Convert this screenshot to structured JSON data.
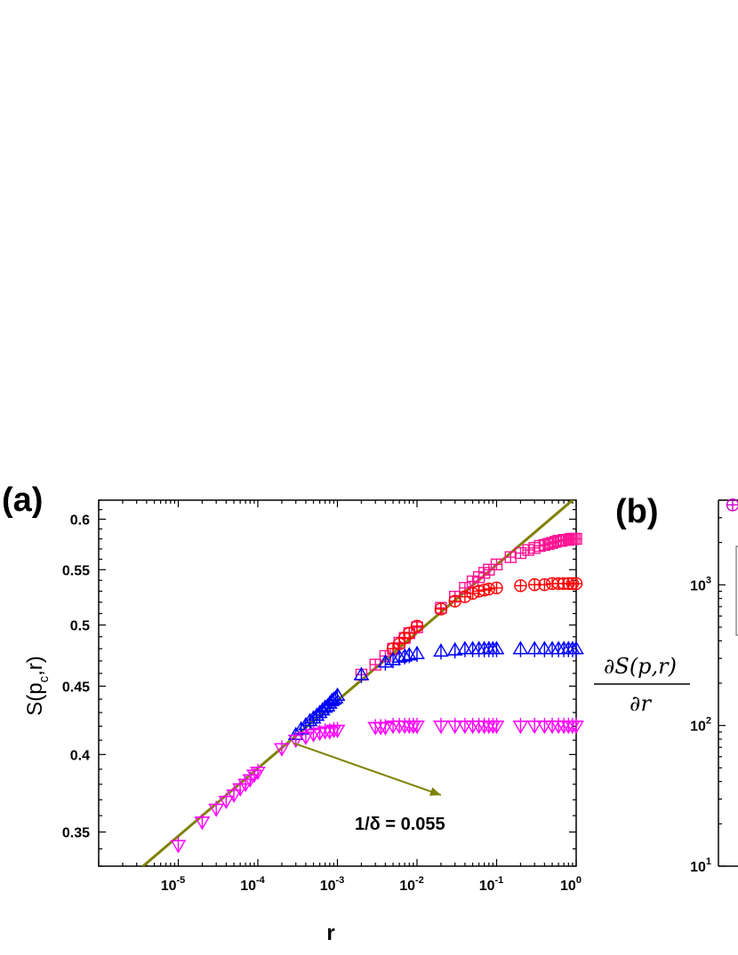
{
  "chart_data": [
    {
      "type": "scatter",
      "panel_label": "(a)",
      "xscale": "log",
      "yscale": "log",
      "xlim": [
        1e-06,
        1
      ],
      "ylim": [
        0.33,
        0.62
      ],
      "xlabel": "r",
      "ylabel": "S(p",
      "ylabel_sub": "c",
      "ylabel_rest": ",r)",
      "xticks": [
        {
          "base": "10",
          "exp": "-5"
        },
        {
          "base": "10",
          "exp": "-4"
        },
        {
          "base": "10",
          "exp": "-3"
        },
        {
          "base": "10",
          "exp": "-2"
        },
        {
          "base": "10",
          "exp": "-1"
        },
        {
          "base": "10",
          "exp": "0"
        }
      ],
      "xtick_values": [
        1e-05,
        0.0001,
        0.001,
        0.01,
        0.1,
        1
      ],
      "yticks": [
        "0.35",
        "0.4",
        "0.45",
        "0.5",
        "0.55",
        "0.6"
      ],
      "ytick_values": [
        0.35,
        0.4,
        0.45,
        0.5,
        0.55,
        0.6
      ],
      "fit_line": {
        "slope": 0.055,
        "x": [
          3.5e-06,
          1
        ],
        "y": [
          0.3295,
          0.6233
        ],
        "color": "#808000"
      },
      "annotation": {
        "text": "1/δ = 0.055",
        "arrow_from": [
          0.00028,
          0.408
        ],
        "arrow_to": [
          0.02,
          0.373
        ]
      },
      "series": [
        {
          "marker": "square-plus",
          "color": "#ff1493",
          "points": [
            [
              0.002,
              0.459
            ],
            [
              0.003,
              0.467
            ],
            [
              0.004,
              0.474
            ],
            [
              0.005,
              0.48
            ],
            [
              0.006,
              0.485
            ],
            [
              0.007,
              0.489
            ],
            [
              0.008,
              0.493
            ],
            [
              0.01,
              0.498
            ],
            [
              0.02,
              0.515
            ],
            [
              0.03,
              0.525
            ],
            [
              0.04,
              0.533
            ],
            [
              0.05,
              0.539
            ],
            [
              0.06,
              0.543
            ],
            [
              0.07,
              0.547
            ],
            [
              0.08,
              0.55
            ],
            [
              0.1,
              0.555
            ],
            [
              0.15,
              0.562
            ],
            [
              0.2,
              0.566
            ],
            [
              0.25,
              0.569
            ],
            [
              0.3,
              0.571
            ],
            [
              0.35,
              0.573
            ],
            [
              0.4,
              0.574
            ],
            [
              0.45,
              0.575
            ],
            [
              0.5,
              0.576
            ],
            [
              0.55,
              0.577
            ],
            [
              0.6,
              0.578
            ],
            [
              0.65,
              0.578
            ],
            [
              0.7,
              0.579
            ],
            [
              0.75,
              0.579
            ],
            [
              0.8,
              0.579
            ],
            [
              0.85,
              0.58
            ],
            [
              0.9,
              0.58
            ],
            [
              0.95,
              0.58
            ],
            [
              1,
              0.58
            ]
          ]
        },
        {
          "marker": "circle-plus",
          "color": "#ff0000",
          "points": [
            [
              0.005,
              0.48
            ],
            [
              0.006,
              0.484
            ],
            [
              0.007,
              0.489
            ],
            [
              0.008,
              0.493
            ],
            [
              0.01,
              0.499
            ],
            [
              0.02,
              0.514
            ],
            [
              0.03,
              0.521
            ],
            [
              0.04,
              0.525
            ],
            [
              0.05,
              0.528
            ],
            [
              0.06,
              0.53
            ],
            [
              0.07,
              0.531
            ],
            [
              0.08,
              0.532
            ],
            [
              0.1,
              0.533
            ],
            [
              0.2,
              0.535
            ],
            [
              0.3,
              0.536
            ],
            [
              0.4,
              0.536
            ],
            [
              0.5,
              0.537
            ],
            [
              0.6,
              0.537
            ],
            [
              0.7,
              0.537
            ],
            [
              0.8,
              0.537
            ],
            [
              0.9,
              0.537
            ],
            [
              1,
              0.537
            ]
          ]
        },
        {
          "marker": "triangle-up-plus",
          "color": "#0000ff",
          "points": [
            [
              0.0003,
              0.414
            ],
            [
              0.00035,
              0.418
            ],
            [
              0.0004,
              0.421
            ],
            [
              0.00045,
              0.424
            ],
            [
              0.0005,
              0.426
            ],
            [
              0.00055,
              0.428
            ],
            [
              0.0006,
              0.43
            ],
            [
              0.00065,
              0.432
            ],
            [
              0.0007,
              0.434
            ],
            [
              0.00075,
              0.435
            ],
            [
              0.0008,
              0.437
            ],
            [
              0.00085,
              0.439
            ],
            [
              0.0009,
              0.44
            ],
            [
              0.00095,
              0.441
            ],
            [
              0.001,
              0.443
            ],
            [
              0.002,
              0.459
            ],
            [
              0.004,
              0.469
            ],
            [
              0.005,
              0.471
            ],
            [
              0.006,
              0.473
            ],
            [
              0.007,
              0.474
            ],
            [
              0.008,
              0.475
            ],
            [
              0.01,
              0.476
            ],
            [
              0.02,
              0.478
            ],
            [
              0.03,
              0.479
            ],
            [
              0.04,
              0.48
            ],
            [
              0.05,
              0.48
            ],
            [
              0.06,
              0.48
            ],
            [
              0.07,
              0.48
            ],
            [
              0.08,
              0.48
            ],
            [
              0.09,
              0.48
            ],
            [
              0.1,
              0.48
            ],
            [
              0.2,
              0.48
            ],
            [
              0.3,
              0.48
            ],
            [
              0.4,
              0.48
            ],
            [
              0.5,
              0.48
            ],
            [
              0.6,
              0.48
            ],
            [
              0.7,
              0.48
            ],
            [
              0.8,
              0.48
            ],
            [
              0.9,
              0.48
            ],
            [
              1,
              0.48
            ]
          ]
        },
        {
          "marker": "triangle-down-plus",
          "color": "#ff00ff",
          "points": [
            [
              1e-05,
              0.342
            ],
            [
              2e-05,
              0.356
            ],
            [
              3e-05,
              0.364
            ],
            [
              4e-05,
              0.369
            ],
            [
              5e-05,
              0.373
            ],
            [
              6e-05,
              0.377
            ],
            [
              7e-05,
              0.38
            ],
            [
              8e-05,
              0.383
            ],
            [
              9e-05,
              0.386
            ],
            [
              0.0001,
              0.388
            ],
            [
              0.0002,
              0.404
            ],
            [
              0.0003,
              0.41
            ],
            [
              0.0004,
              0.412
            ],
            [
              0.0005,
              0.414
            ],
            [
              0.0006,
              0.415
            ],
            [
              0.0007,
              0.416
            ],
            [
              0.0008,
              0.416
            ],
            [
              0.0009,
              0.417
            ],
            [
              0.001,
              0.417
            ],
            [
              0.003,
              0.419
            ],
            [
              0.0035,
              0.419
            ],
            [
              0.004,
              0.419
            ],
            [
              0.005,
              0.42
            ],
            [
              0.006,
              0.42
            ],
            [
              0.007,
              0.42
            ],
            [
              0.008,
              0.42
            ],
            [
              0.009,
              0.42
            ],
            [
              0.01,
              0.42
            ],
            [
              0.02,
              0.42
            ],
            [
              0.03,
              0.42
            ],
            [
              0.04,
              0.42
            ],
            [
              0.05,
              0.42
            ],
            [
              0.06,
              0.42
            ],
            [
              0.07,
              0.42
            ],
            [
              0.08,
              0.42
            ],
            [
              0.09,
              0.42
            ],
            [
              0.1,
              0.42
            ],
            [
              0.2,
              0.42
            ],
            [
              0.3,
              0.42
            ],
            [
              0.4,
              0.42
            ],
            [
              0.5,
              0.42
            ],
            [
              0.6,
              0.42
            ],
            [
              0.7,
              0.42
            ],
            [
              0.8,
              0.42
            ],
            [
              0.9,
              0.42
            ],
            [
              1,
              0.42
            ]
          ]
        }
      ]
    },
    {
      "type": "scatter",
      "panel_label": "(b)",
      "yscale": "log",
      "ylabel_num": "∂S(p,r)",
      "ylabel_den": "∂r",
      "ylim": [
        10,
        4000
      ],
      "yticks": [
        {
          "base": "10",
          "exp": "3"
        },
        {
          "base": "10",
          "exp": "2"
        },
        {
          "base": "10",
          "exp": "1"
        }
      ],
      "ytick_values": [
        1000,
        100,
        10
      ],
      "series": [
        {
          "marker": "circle-plus",
          "color": "#cc00cc",
          "points": [
            [
              0,
              3700
            ]
          ]
        }
      ]
    }
  ]
}
